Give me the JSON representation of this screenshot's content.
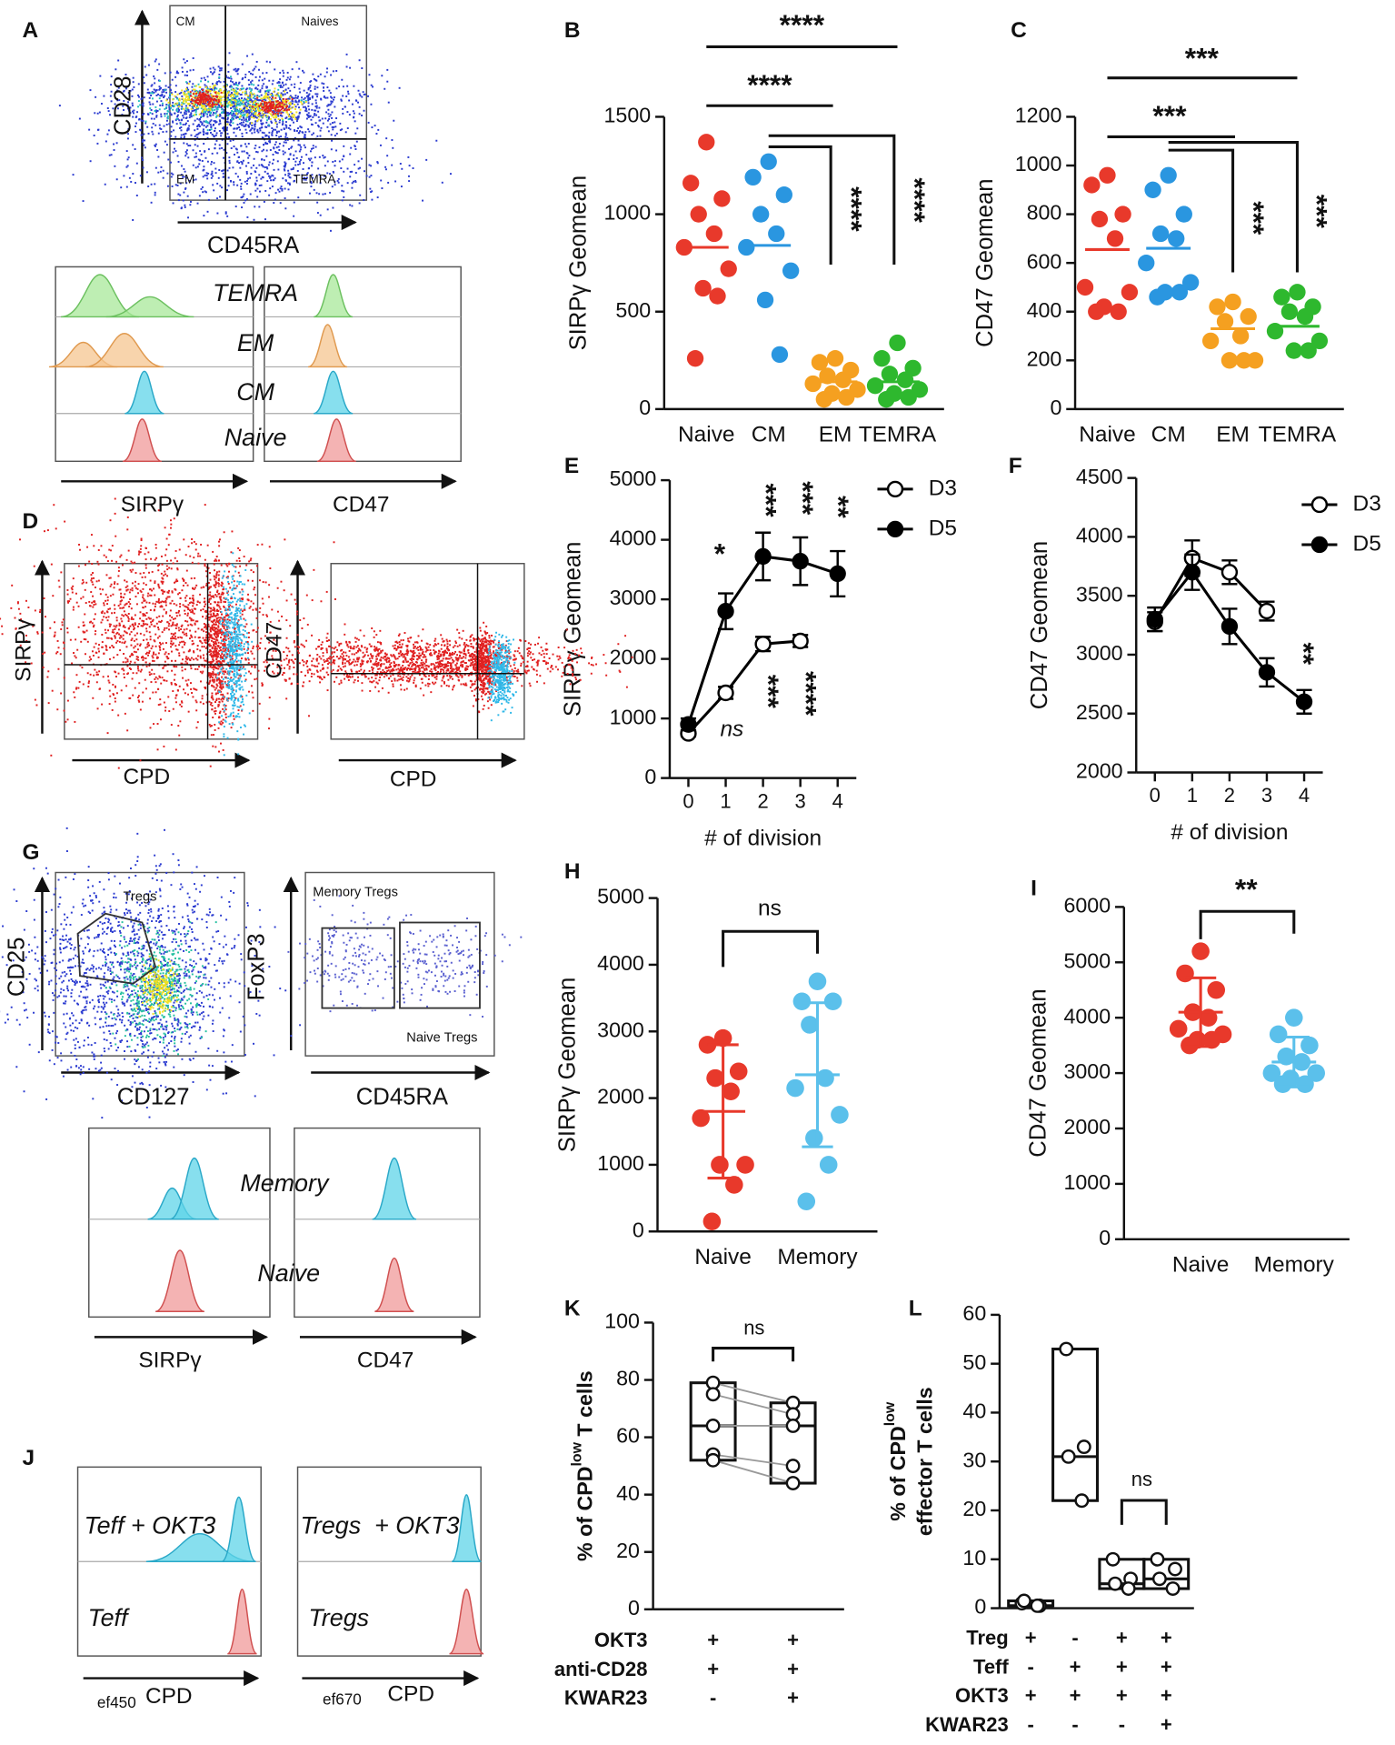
{
  "chart_data": [
    {
      "panel": "B",
      "type": "dot",
      "ylabel": "SIRPγ Geomean",
      "ylim": [
        0,
        1500
      ],
      "yticks": [
        0,
        500,
        1000,
        1500
      ],
      "categories": [
        "Naive",
        "CM",
        "EM",
        "TEMRA"
      ],
      "groups": [
        {
          "color": "#e8392b",
          "values": [
            1370,
            1160,
            1080,
            1000,
            900,
            830,
            720,
            620,
            580,
            260
          ],
          "mean": 830
        },
        {
          "color": "#2a96e0",
          "values": [
            1270,
            1190,
            1100,
            1000,
            900,
            830,
            710,
            560,
            280
          ],
          "mean": 840
        },
        {
          "color": "#f5a020",
          "values": [
            260,
            240,
            200,
            170,
            150,
            130,
            100,
            80,
            60,
            50
          ],
          "mean": 140
        },
        {
          "color": "#2eb82e",
          "values": [
            340,
            260,
            210,
            180,
            150,
            120,
            100,
            80,
            60,
            50
          ],
          "mean": 140
        }
      ],
      "annotations": [
        "****",
        "****",
        "****",
        "****"
      ]
    },
    {
      "panel": "C",
      "type": "dot",
      "ylabel": "CD47 Geomean",
      "ylim": [
        0,
        1200
      ],
      "yticks": [
        0,
        200,
        400,
        600,
        800,
        1000,
        1200
      ],
      "categories": [
        "Naive",
        "CM",
        "EM",
        "TEMRA"
      ],
      "groups": [
        {
          "color": "#e8392b",
          "values": [
            960,
            920,
            800,
            780,
            700,
            500,
            480,
            420,
            400,
            400
          ],
          "mean": 655
        },
        {
          "color": "#2a96e0",
          "values": [
            960,
            900,
            800,
            720,
            700,
            600,
            520,
            480,
            480,
            460
          ],
          "mean": 660
        },
        {
          "color": "#f5a020",
          "values": [
            440,
            420,
            380,
            360,
            300,
            280,
            200,
            200,
            200
          ],
          "mean": 330
        },
        {
          "color": "#2eb82e",
          "values": [
            480,
            460,
            420,
            400,
            380,
            320,
            280,
            240,
            240
          ],
          "mean": 340
        }
      ],
      "annotations": [
        "***",
        "***",
        "***",
        "***"
      ]
    },
    {
      "panel": "E",
      "type": "line",
      "ylabel": "SIRPγ Geomean",
      "xlabel": "# of division",
      "x": [
        0,
        1,
        2,
        3,
        4
      ],
      "xlim": [
        -0.5,
        4.5
      ],
      "xticks": [
        0,
        1,
        2,
        3,
        4
      ],
      "ylim": [
        0,
        5000
      ],
      "yticks": [
        0,
        1000,
        2000,
        3000,
        4000,
        5000
      ],
      "series": [
        {
          "name": "D3",
          "color": "#000000",
          "filled": false,
          "values": [
            750,
            1430,
            2250,
            2300,
            null
          ],
          "errors": [
            50,
            100,
            120,
            100,
            null
          ]
        },
        {
          "name": "D5",
          "color": "#000000",
          "filled": true,
          "values": [
            900,
            2800,
            3720,
            3640,
            3430
          ],
          "errors": [
            100,
            300,
            400,
            400,
            380
          ]
        }
      ],
      "annotations": [
        "*",
        "***",
        "***",
        "**",
        "***",
        "****",
        "ns"
      ]
    },
    {
      "panel": "F",
      "type": "line",
      "ylabel": "CD47 Geomean",
      "xlabel": "# of division",
      "x": [
        0,
        1,
        2,
        3,
        4
      ],
      "xlim": [
        -0.5,
        4.5
      ],
      "xticks": [
        0,
        1,
        2,
        3,
        4
      ],
      "ylim": [
        2000,
        4500
      ],
      "yticks": [
        2000,
        2500,
        3000,
        3500,
        4000,
        4500
      ],
      "series": [
        {
          "name": "D3",
          "color": "#000000",
          "filled": false,
          "values": [
            3280,
            3820,
            3700,
            3370,
            null
          ],
          "errors": [
            80,
            150,
            100,
            80,
            null
          ]
        },
        {
          "name": "D5",
          "color": "#000000",
          "filled": true,
          "values": [
            3300,
            3700,
            3240,
            2850,
            2600
          ],
          "errors": [
            100,
            150,
            150,
            120,
            100
          ]
        }
      ],
      "annotations": [
        "**"
      ]
    },
    {
      "panel": "H",
      "type": "dot",
      "ylabel": "SIRPγ Geomean",
      "ylim": [
        0,
        5000
      ],
      "yticks": [
        0,
        1000,
        2000,
        3000,
        4000,
        5000
      ],
      "categories": [
        "Naive",
        "Memory"
      ],
      "groups": [
        {
          "color": "#e8392b",
          "values": [
            2900,
            2800,
            2400,
            2300,
            2100,
            1700,
            1000,
            1000,
            700,
            150
          ],
          "mean": 1800,
          "sd": 1000
        },
        {
          "color": "#5bc0eb",
          "values": [
            3750,
            3450,
            3450,
            3100,
            2300,
            2150,
            1750,
            1400,
            1000,
            450
          ],
          "mean": 2350,
          "sd": 1080
        }
      ],
      "annotations": [
        "ns"
      ]
    },
    {
      "panel": "I",
      "type": "dot",
      "ylabel": "CD47 Geomean",
      "ylim": [
        0,
        6000
      ],
      "yticks": [
        0,
        1000,
        2000,
        3000,
        4000,
        5000,
        6000
      ],
      "categories": [
        "Naive",
        "Memory"
      ],
      "groups": [
        {
          "color": "#e8392b",
          "values": [
            5200,
            4800,
            4500,
            4100,
            4000,
            3800,
            3700,
            3600,
            3600,
            3500
          ],
          "mean": 4100,
          "sd": 620
        },
        {
          "color": "#5bc0eb",
          "values": [
            4000,
            3700,
            3500,
            3300,
            3200,
            3000,
            3000,
            2900,
            2800,
            2800
          ],
          "mean": 3200,
          "sd": 450
        }
      ],
      "annotations": [
        "**"
      ]
    },
    {
      "panel": "K",
      "type": "box",
      "ylabel": [
        "% of CPD",
        "low",
        " T cells"
      ],
      "ylim": [
        0,
        100
      ],
      "yticks": [
        0,
        20,
        40,
        60,
        80,
        100
      ],
      "paired": true,
      "groups": [
        {
          "values": [
            79,
            75,
            64,
            54,
            52
          ]
        },
        {
          "values": [
            72,
            68,
            64,
            50,
            44
          ]
        }
      ],
      "table": [
        {
          "label": "OKT3",
          "cells": [
            "+",
            "+"
          ]
        },
        {
          "label": "anti-CD28",
          "cells": [
            "+",
            "+"
          ]
        },
        {
          "label": "KWAR23",
          "cells": [
            "-",
            "+"
          ]
        }
      ],
      "annotations": [
        "ns"
      ]
    },
    {
      "panel": "L",
      "type": "box",
      "ylabel": [
        "% of CPD",
        "low"
      ],
      "ylabel2": "effector T cells",
      "ylim": [
        0,
        60
      ],
      "yticks": [
        0,
        10,
        20,
        30,
        40,
        50,
        60
      ],
      "paired": false,
      "groups": [
        {
          "values": [
            1,
            0.5,
            1.5,
            0.5
          ]
        },
        {
          "values": [
            53,
            33,
            31,
            22
          ]
        },
        {
          "values": [
            10,
            6,
            5,
            4
          ]
        },
        {
          "values": [
            10,
            8,
            6,
            4
          ]
        }
      ],
      "table": [
        {
          "label": "Treg",
          "cells": [
            "+",
            "-",
            "+",
            "+"
          ]
        },
        {
          "label": "Teff",
          "cells": [
            "-",
            "+",
            "+",
            "+"
          ]
        },
        {
          "label": "OKT3",
          "cells": [
            "+",
            "+",
            "+",
            "+"
          ]
        },
        {
          "label": "KWAR23",
          "cells": [
            "-",
            "-",
            "-",
            "+"
          ]
        }
      ],
      "annotations": [
        "ns"
      ]
    }
  ],
  "flow_panels": [
    {
      "panel": "A",
      "texts": [
        "CM",
        "Naives",
        "EM",
        "TEMRA",
        "CD28",
        "CD45RA",
        "TEMRA",
        "EM",
        "CM",
        "Naive",
        "SIRPγ",
        "CD47"
      ]
    },
    {
      "panel": "D",
      "texts": [
        "SIRPγ",
        "CPD",
        "CD47",
        "CPD"
      ]
    },
    {
      "panel": "G",
      "texts": [
        "CD25",
        "CD127",
        "Tregs",
        "FoxP3",
        "CD45RA",
        "Memory Tregs",
        "Naive Tregs",
        "Memory",
        "Naive",
        "SIRPγ",
        "CD47"
      ]
    },
    {
      "panel": "J",
      "texts": [
        "Teff + OKT3",
        "Teff",
        "Tregs  + OKT3",
        "Tregs",
        "ef450",
        "CPD",
        "ef670",
        "CPD"
      ]
    }
  ]
}
